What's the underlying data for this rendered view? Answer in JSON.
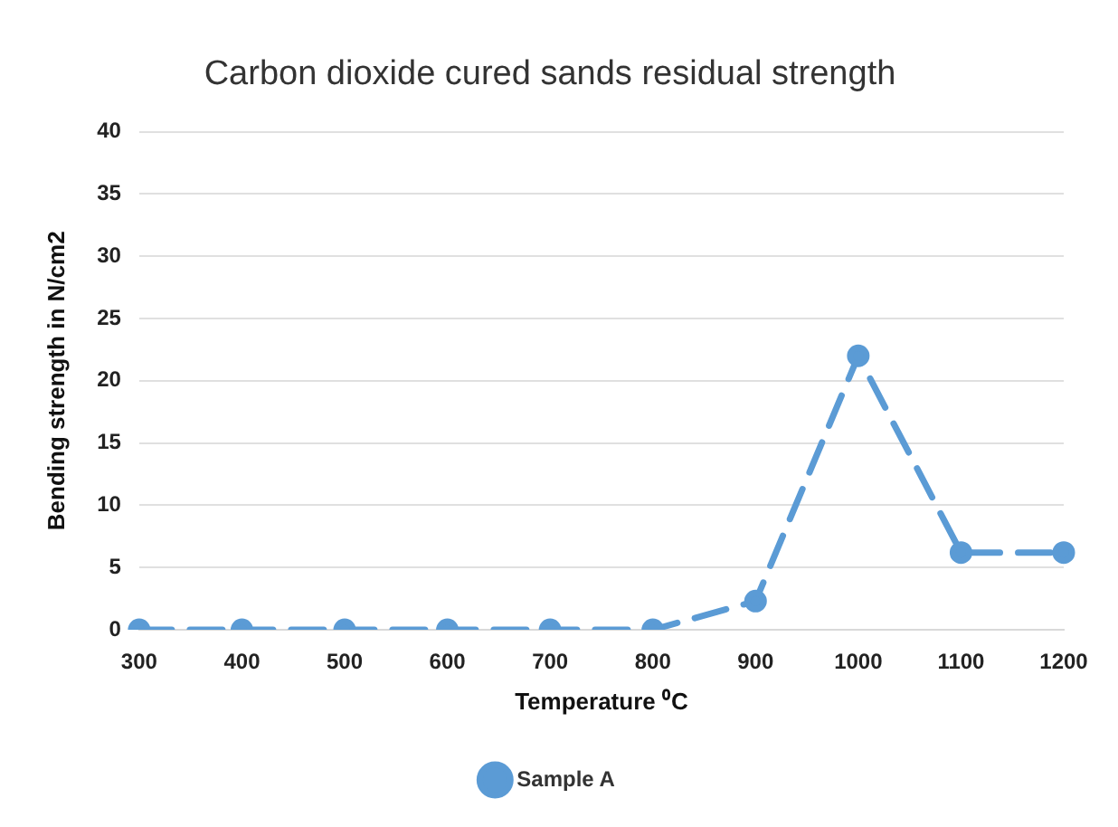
{
  "chart_data": {
    "type": "line",
    "title": "Carbon dioxide cured sands residual strength",
    "xlabel": "Temperature ⁰C",
    "ylabel": "Bending strength in N/cm2",
    "categories": [
      "300",
      "400",
      "500",
      "600",
      "700",
      "800",
      "900",
      "1000",
      "1100",
      "1200"
    ],
    "series": [
      {
        "name": "Sample A",
        "color": "#5b9bd5",
        "values": [
          0,
          0,
          0,
          0,
          0,
          0,
          2.3,
          22,
          6.2,
          6.2
        ]
      }
    ],
    "ylim": [
      0,
      40
    ],
    "yticks": [
      0,
      5,
      10,
      15,
      20,
      25,
      30,
      35,
      40
    ],
    "grid": "y",
    "legend": "bottom",
    "marker": "circle",
    "line_style": "dashed"
  }
}
